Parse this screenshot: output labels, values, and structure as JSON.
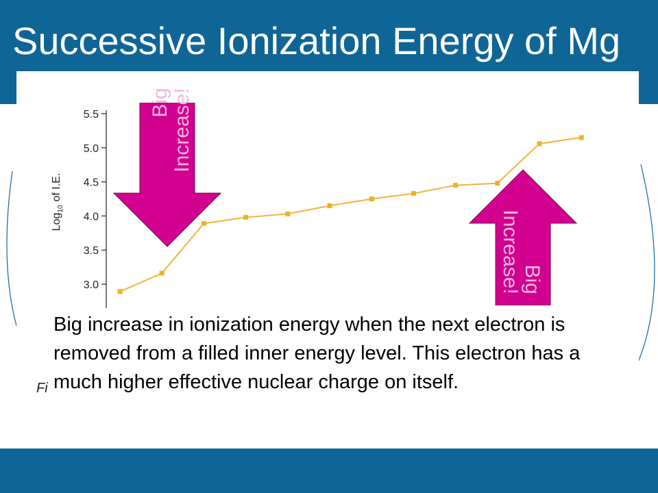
{
  "title": "Successive Ionization Energy of Mg",
  "colors": {
    "bar": "#0f6596",
    "line": "#f2b33d",
    "marker": "#efb21f",
    "arrow": "#d2008f",
    "arrow_text": "#f0b8de"
  },
  "arrows": {
    "left": {
      "direction": "down",
      "line1": "Big",
      "line2": "Increase!"
    },
    "right": {
      "direction": "up",
      "line1": "Big",
      "line2": "Increase!"
    }
  },
  "body_text": "Big increase in ionization energy when the next electron is removed from a filled inner energy level. This electron has a much higher effective nuclear charge on itself.",
  "caption_fragment": "Fi",
  "chart_data": {
    "type": "line",
    "ylabel": "Log10 of I.E.",
    "ylabel_main": "Log",
    "ylabel_sub": "10",
    "ylabel_rest": "of I.E.",
    "y_ticks": [
      "5.5",
      "5.0",
      "4.5",
      "4.0",
      "3.5",
      "3.0"
    ],
    "ylim": [
      2.75,
      5.55
    ],
    "x": [
      1,
      2,
      3,
      4,
      5,
      6,
      7,
      8,
      9,
      10,
      11,
      12
    ],
    "values": [
      2.89,
      3.16,
      3.89,
      3.98,
      4.03,
      4.15,
      4.25,
      4.33,
      4.45,
      4.48,
      5.06,
      5.15
    ],
    "grid": false,
    "legend": "none"
  }
}
